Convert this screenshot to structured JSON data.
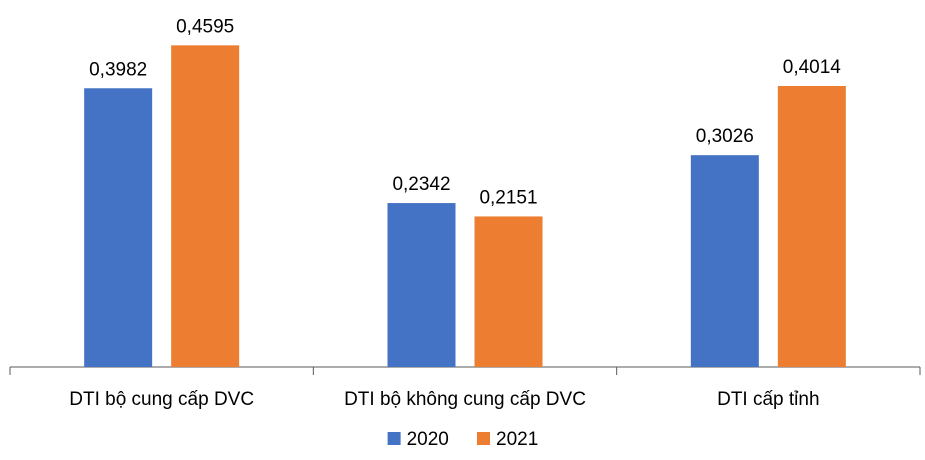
{
  "chart_data": {
    "type": "bar",
    "categories": [
      "DTI bộ cung cấp DVC",
      "DTI bộ không cung cấp DVC",
      "DTI cấp tỉnh"
    ],
    "series": [
      {
        "name": "2020",
        "values": [
          0.3982,
          0.2342,
          0.3026
        ],
        "labels": [
          "0,3982",
          "0,2342",
          "0,3026"
        ],
        "color": "#4472C4"
      },
      {
        "name": "2021",
        "values": [
          0.4595,
          0.2151,
          0.4014
        ],
        "labels": [
          "0,4595",
          "0,2151",
          "0,4014"
        ],
        "color": "#ED7D31"
      }
    ],
    "ylim": [
      0,
      0.5
    ],
    "grid": false,
    "legend": "bottom",
    "title": "",
    "xlabel": "",
    "ylabel": ""
  }
}
